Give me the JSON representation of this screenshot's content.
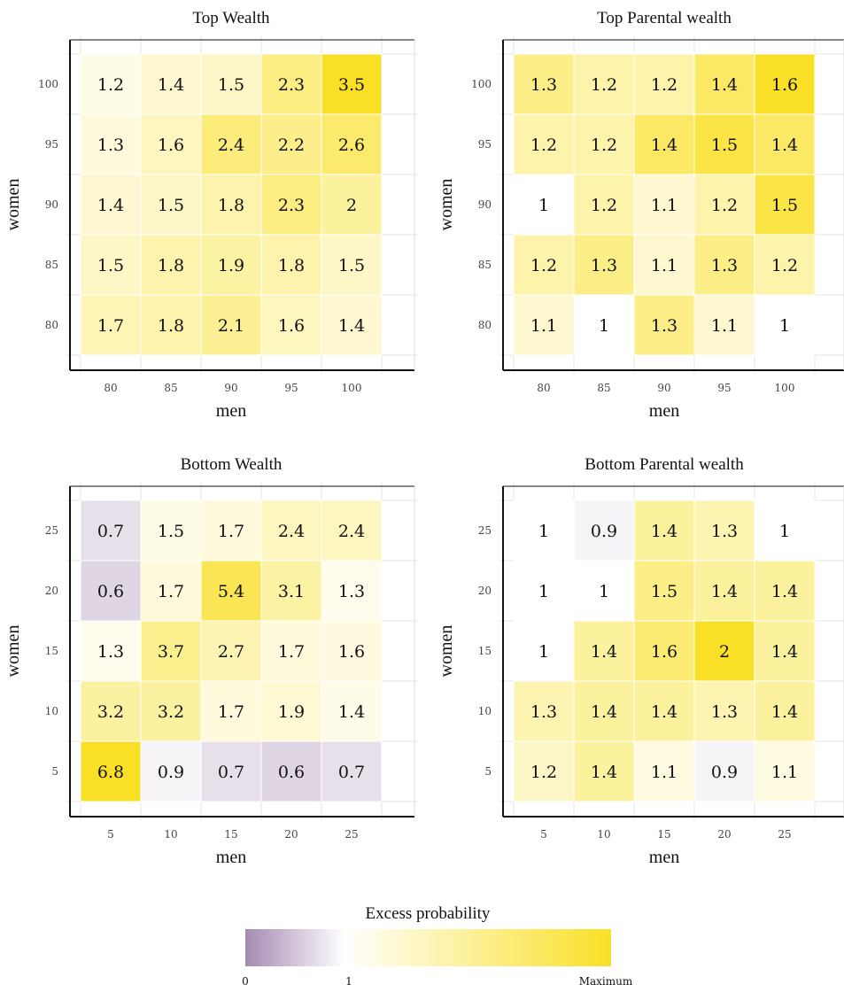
{
  "chart_data": [
    {
      "type": "heatmap",
      "title": "Top Wealth",
      "xlabel": "men",
      "ylabel": "women",
      "x": [
        "80",
        "85",
        "90",
        "95",
        "100"
      ],
      "y": [
        "80",
        "85",
        "90",
        "95",
        "100"
      ],
      "values": [
        [
          1.7,
          1.8,
          2.1,
          1.6,
          1.4
        ],
        [
          1.5,
          1.8,
          1.9,
          1.8,
          1.5
        ],
        [
          1.4,
          1.5,
          1.8,
          2.3,
          2
        ],
        [
          1.3,
          1.6,
          2.4,
          2.2,
          2.6
        ],
        [
          1.2,
          1.4,
          1.5,
          2.3,
          3.5
        ]
      ]
    },
    {
      "type": "heatmap",
      "title": "Top Parental wealth",
      "xlabel": "men",
      "ylabel": "women",
      "x": [
        "80",
        "85",
        "90",
        "95",
        "100"
      ],
      "y": [
        "80",
        "85",
        "90",
        "95",
        "100"
      ],
      "values": [
        [
          1.1,
          1,
          1.3,
          1.1,
          1
        ],
        [
          1.2,
          1.3,
          1.1,
          1.3,
          1.2
        ],
        [
          1,
          1.2,
          1.1,
          1.2,
          1.5
        ],
        [
          1.2,
          1.2,
          1.4,
          1.5,
          1.4
        ],
        [
          1.3,
          1.2,
          1.2,
          1.4,
          1.6
        ]
      ]
    },
    {
      "type": "heatmap",
      "title": "Bottom Wealth",
      "xlabel": "men",
      "ylabel": "women",
      "x": [
        "5",
        "10",
        "15",
        "20",
        "25"
      ],
      "y": [
        "5",
        "10",
        "15",
        "20",
        "25"
      ],
      "values": [
        [
          6.8,
          0.9,
          0.7,
          0.6,
          0.7
        ],
        [
          3.2,
          3.2,
          1.7,
          1.9,
          1.4
        ],
        [
          1.3,
          3.7,
          2.7,
          1.7,
          1.6
        ],
        [
          0.6,
          1.7,
          5.4,
          3.1,
          1.3
        ],
        [
          0.7,
          1.5,
          1.7,
          2.4,
          2.4
        ]
      ]
    },
    {
      "type": "heatmap",
      "title": "Bottom Parental wealth",
      "xlabel": "men",
      "ylabel": "women",
      "x": [
        "5",
        "10",
        "15",
        "20",
        "25"
      ],
      "y": [
        "5",
        "10",
        "15",
        "20",
        "25"
      ],
      "values": [
        [
          1.2,
          1.4,
          1.1,
          0.9,
          1.1
        ],
        [
          1.3,
          1.4,
          1.4,
          1.3,
          1.4
        ],
        [
          1,
          1.4,
          1.6,
          2,
          1.4
        ],
        [
          1,
          1,
          1.5,
          1.4,
          1.4
        ],
        [
          1,
          0.9,
          1.4,
          1.3,
          1
        ]
      ]
    }
  ],
  "legend": {
    "title": "Excess probability",
    "ticks": [
      "0",
      "1",
      "Maximum"
    ],
    "colors": {
      "low": "#a58ab2",
      "mid": "#ffffff",
      "high": "#f9e027"
    }
  }
}
